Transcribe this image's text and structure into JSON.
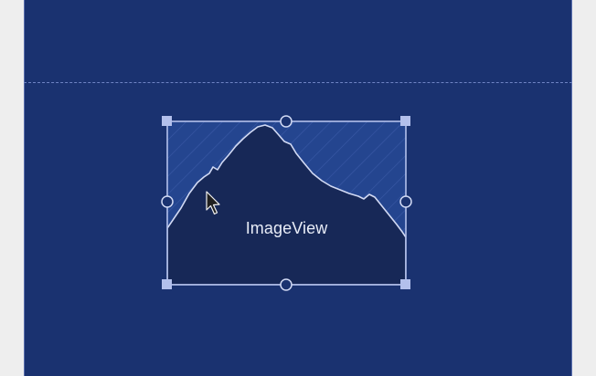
{
  "editor": {
    "selected_view": {
      "label": "ImageView",
      "icon": "image-placeholder-icon"
    }
  },
  "colors": {
    "canvas_background": "#1a3270",
    "view_fill": "#172857",
    "hatch_fill": "#24458f",
    "selection_border": "#b3c0ec",
    "handle_fill": "#b3c0ec",
    "guideline": "#6f84c4"
  }
}
